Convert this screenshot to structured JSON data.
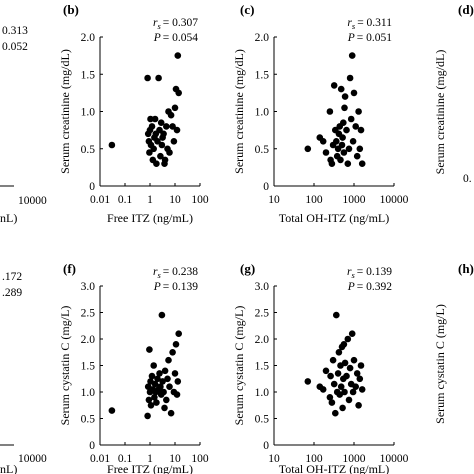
{
  "frag": {
    "a": {
      "line1": "0.313",
      "line2": "0.052"
    },
    "e": {
      "line1": ".172",
      "line2": ".289"
    },
    "tick_10000": "10000",
    "xlab_tail": "nL)",
    "xlab_tail2": "nL)",
    "d_label": "(d)",
    "h_label": "(h)",
    "d_ylabel": "Serum creatinine (mg/dL)",
    "h_ylabel": "Serum cystatin C (mg/L)",
    "d_tick": "0."
  },
  "chart_data": [
    {
      "panel": "(b)",
      "type": "scatter",
      "color": "#000000",
      "xlabel": "Free ITZ (ng/mL)",
      "ylabel": "Serum creatinine (mg/dL)",
      "xscale": "log",
      "xlim": [
        0.01,
        100
      ],
      "ylim": [
        0,
        2.0
      ],
      "xticks": [
        "0.01",
        "0.1",
        "1",
        "10",
        "100"
      ],
      "yticks": [
        "0",
        "0.5",
        "1.0",
        "1.5",
        "2.0"
      ],
      "rs_value": "= 0.307",
      "p_value": "= 0.054",
      "x": [
        0.03,
        0.8,
        0.85,
        0.9,
        0.95,
        1.0,
        1.05,
        1.1,
        1.2,
        1.3,
        1.4,
        1.5,
        1.6,
        1.7,
        1.8,
        2.0,
        2.2,
        2.4,
        2.6,
        2.8,
        3.0,
        3.2,
        3.5,
        3.8,
        4.0,
        4.5,
        5.0,
        5.5,
        6.0,
        7.0,
        8.0,
        9.0,
        10.0,
        11.0,
        12.0,
        13.0,
        14.0
      ],
      "y": [
        0.55,
        1.45,
        0.7,
        0.6,
        0.45,
        0.75,
        0.9,
        0.55,
        0.8,
        0.35,
        0.5,
        0.65,
        0.9,
        0.7,
        0.3,
        0.6,
        1.45,
        0.75,
        0.4,
        0.85,
        0.55,
        0.65,
        0.7,
        0.3,
        0.35,
        0.8,
        0.5,
        1.0,
        0.45,
        0.95,
        0.8,
        0.6,
        1.05,
        1.3,
        0.75,
        1.75,
        1.25
      ]
    },
    {
      "panel": "(c)",
      "type": "scatter",
      "color": "#000000",
      "xlabel": "Total OH-ITZ (ng/mL)",
      "ylabel": "Serum creatinine (mg/dL)",
      "xscale": "log",
      "xlim": [
        10,
        10000
      ],
      "ylim": [
        0,
        2.0
      ],
      "xticks": [
        "10",
        "100",
        "1000",
        "10000"
      ],
      "yticks": [
        "0",
        "0.5",
        "1.0",
        "1.5",
        "2.0"
      ],
      "rs_value": "= 0.311",
      "p_value": "= 0.051",
      "x": [
        70,
        140,
        170,
        200,
        250,
        260,
        280,
        300,
        320,
        340,
        360,
        380,
        400,
        420,
        440,
        460,
        480,
        500,
        520,
        540,
        560,
        580,
        600,
        650,
        700,
        750,
        800,
        850,
        900,
        950,
        1000,
        1100,
        1200,
        1300,
        1400,
        1500,
        1600
      ],
      "y": [
        0.5,
        0.65,
        0.6,
        0.45,
        1.0,
        0.35,
        0.3,
        0.55,
        1.35,
        0.75,
        0.6,
        0.4,
        0.5,
        0.7,
        0.8,
        0.35,
        1.3,
        0.55,
        0.65,
        0.85,
        0.45,
        1.05,
        1.2,
        0.75,
        0.3,
        0.5,
        1.45,
        0.9,
        1.75,
        0.6,
        1.25,
        0.8,
        0.4,
        1.0,
        0.5,
        0.75,
        0.3
      ]
    },
    {
      "panel": "(f)",
      "type": "scatter",
      "color": "#000000",
      "xlabel": "Free ITZ (ng/mL)",
      "ylabel": "Serum cystatin C (mg/L)",
      "xscale": "log",
      "xlim": [
        0.01,
        100
      ],
      "ylim": [
        0,
        3.0
      ],
      "xticks": [
        "0.01",
        "0.1",
        "1",
        "10",
        "100"
      ],
      "yticks": [
        "0",
        "0.5",
        "1.0",
        "1.5",
        "2.0",
        "2.5",
        "3.0"
      ],
      "rs_value": "= 0.238",
      "p_value": "= 0.139",
      "x": [
        0.03,
        0.8,
        0.85,
        0.9,
        0.95,
        1.0,
        1.05,
        1.1,
        1.2,
        1.3,
        1.4,
        1.5,
        1.6,
        1.7,
        1.8,
        2.0,
        2.2,
        2.4,
        2.6,
        2.8,
        3.0,
        3.2,
        3.5,
        3.8,
        4.0,
        4.5,
        5.0,
        5.5,
        6.0,
        7.0,
        8.0,
        9.0,
        10.0,
        11.0,
        12.0,
        13.0,
        14.0
      ],
      "y": [
        0.65,
        0.55,
        1.1,
        0.85,
        1.8,
        1.0,
        1.2,
        0.75,
        1.3,
        1.05,
        1.5,
        0.9,
        1.15,
        1.0,
        0.8,
        1.25,
        1.05,
        1.35,
        1.1,
        0.95,
        2.45,
        1.2,
        1.0,
        0.7,
        1.4,
        0.85,
        1.25,
        1.6,
        1.1,
        0.6,
        1.75,
        1.0,
        1.35,
        1.9,
        0.95,
        1.2,
        2.1
      ]
    },
    {
      "panel": "(g)",
      "type": "scatter",
      "color": "#000000",
      "xlabel": "Total OH-ITZ (ng/mL)",
      "ylabel": "Serum cystatin C (mg/L)",
      "xscale": "log",
      "xlim": [
        10,
        10000
      ],
      "ylim": [
        0,
        3.0
      ],
      "xticks": [
        "10",
        "100",
        "1000",
        "10000"
      ],
      "yticks": [
        "0",
        "0.5",
        "1.0",
        "1.5",
        "2.0",
        "2.5",
        "3.0"
      ],
      "rs_value": "= 0.139",
      "p_value": "= 0.392",
      "x": [
        70,
        140,
        170,
        200,
        250,
        260,
        280,
        300,
        320,
        340,
        360,
        380,
        400,
        420,
        440,
        460,
        480,
        500,
        520,
        540,
        560,
        580,
        600,
        650,
        700,
        750,
        800,
        850,
        900,
        950,
        1000,
        1100,
        1200,
        1300,
        1400,
        1500,
        1600
      ],
      "y": [
        1.2,
        1.1,
        1.05,
        1.4,
        0.9,
        1.3,
        0.8,
        1.6,
        1.15,
        0.6,
        2.45,
        1.0,
        1.35,
        1.75,
        0.95,
        1.5,
        1.1,
        1.85,
        0.7,
        1.25,
        1.9,
        1.0,
        1.55,
        1.3,
        2.0,
        0.85,
        1.45,
        1.15,
        2.1,
        1.0,
        1.6,
        1.1,
        1.35,
        0.75,
        1.25,
        1.5,
        1.05
      ]
    }
  ]
}
